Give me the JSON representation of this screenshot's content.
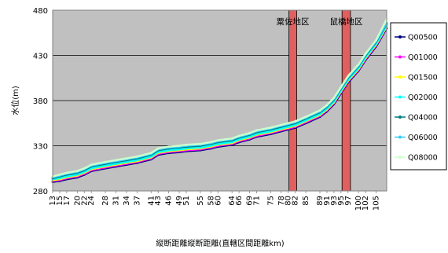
{
  "chart_data": {
    "type": "line",
    "title": "",
    "xlabel": "縦断距離縦断距離(直轄区間距離km)",
    "ylabel": "水位(m)",
    "ylim": [
      280,
      480
    ],
    "yticks": [
      280,
      330,
      380,
      430,
      480
    ],
    "xlim": [
      13,
      108
    ],
    "xticks": [
      13,
      15,
      17,
      20,
      22,
      24,
      28,
      31,
      34,
      37,
      41,
      43,
      46,
      49,
      51,
      55,
      58,
      60,
      64,
      66,
      69,
      71,
      75,
      78,
      80,
      82,
      85,
      89,
      91,
      93,
      95,
      97,
      100,
      102,
      105
    ],
    "grid": "horizontal",
    "plot_background": "#c0c0c0",
    "legend_position": "right",
    "regions": [
      {
        "label": "粟佐地区",
        "x_start": 80.2,
        "x_end": 82.4,
        "color": "#e06060"
      },
      {
        "label": "鼠橋地区",
        "x_start": 95.3,
        "x_end": 97.7,
        "color": "#e06060"
      }
    ],
    "x": [
      13,
      15,
      17,
      20,
      22,
      24,
      28,
      31,
      34,
      37,
      41,
      43,
      46,
      49,
      51,
      55,
      58,
      60,
      64,
      66,
      69,
      71,
      75,
      78,
      80,
      82,
      85,
      89,
      91,
      93,
      95,
      97,
      100,
      102,
      105,
      108
    ],
    "series": [
      {
        "name": "Q00500",
        "color": "#000080",
        "values": [
          290,
          291,
          293,
          295,
          298,
          302,
          305,
          307,
          309,
          311,
          315,
          320,
          322,
          323,
          324,
          325,
          327,
          329,
          331,
          334,
          337,
          340,
          343,
          346,
          348,
          350,
          355,
          362,
          368,
          376,
          388,
          400,
          413,
          425,
          440,
          460
        ]
      },
      {
        "name": "Q01000",
        "color": "#ff00ff",
        "values": [
          291,
          292,
          294,
          296,
          299,
          303,
          306,
          308,
          310,
          312,
          316,
          321,
          323,
          324,
          325,
          326,
          328,
          330,
          332,
          335,
          338,
          341,
          344,
          347,
          349,
          351,
          356,
          363,
          369,
          377,
          389,
          401,
          414,
          426,
          441,
          461
        ]
      },
      {
        "name": "Q01500",
        "color": "#ffff00",
        "values": [
          292,
          293,
          295,
          297,
          300,
          304,
          307,
          309,
          311,
          313,
          317,
          322,
          324,
          325,
          326,
          327,
          329,
          331,
          333,
          336,
          339,
          342,
          345,
          348,
          350,
          352,
          357,
          364,
          370,
          378,
          390,
          402,
          415,
          427,
          442,
          462
        ]
      },
      {
        "name": "Q02000",
        "color": "#00ffff",
        "values": [
          293,
          294,
          296,
          298,
          301,
          305,
          308,
          310,
          312,
          314,
          318,
          323,
          325,
          326,
          327,
          328,
          330,
          332,
          334,
          337,
          340,
          343,
          346,
          349,
          351,
          353,
          358,
          365,
          371,
          379,
          391,
          403,
          416,
          428,
          443,
          463
        ]
      },
      {
        "name": "Q04000",
        "color": "#008080",
        "values": [
          294,
          296,
          298,
          300,
          303,
          307,
          310,
          312,
          314,
          316,
          320,
          325,
          327,
          328,
          329,
          330,
          332,
          334,
          336,
          339,
          342,
          345,
          348,
          351,
          353,
          355,
          360,
          367,
          373,
          381,
          393,
          405,
          418,
          430,
          445,
          465
        ]
      },
      {
        "name": "Q06000",
        "color": "#33ccff",
        "values": [
          295,
          297,
          299,
          301,
          304,
          308,
          311,
          313,
          315,
          317,
          321,
          326,
          328,
          329,
          330,
          331,
          333,
          335,
          337,
          340,
          343,
          346,
          349,
          352,
          354,
          356,
          361,
          368,
          374,
          382,
          394,
          406,
          419,
          431,
          446,
          466
        ]
      },
      {
        "name": "Q08000",
        "color": "#ccffcc",
        "values": [
          296,
          298,
          300,
          302,
          305,
          309,
          312,
          314,
          316,
          318,
          322,
          327,
          329,
          330,
          331,
          332,
          334,
          336,
          338,
          341,
          344,
          347,
          350,
          353,
          355,
          357,
          362,
          369,
          375,
          383,
          395,
          407,
          420,
          432,
          447,
          470
        ]
      }
    ]
  }
}
